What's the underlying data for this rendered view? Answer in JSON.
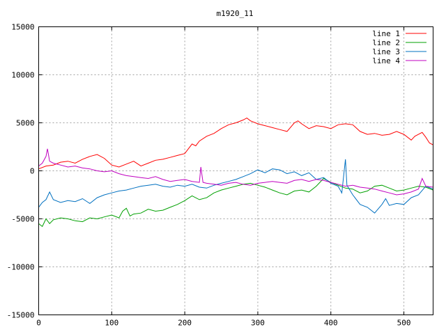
{
  "chart_data": {
    "type": "line",
    "title": "m1920_11",
    "xlabel": "",
    "ylabel": "",
    "xlim": [
      0,
      540
    ],
    "ylim": [
      -15000,
      15000
    ],
    "xticks": [
      0,
      100,
      200,
      300,
      400,
      500
    ],
    "yticks": [
      -15000,
      -10000,
      -5000,
      0,
      5000,
      10000,
      15000
    ],
    "grid": true,
    "legend_position": "top-right",
    "series": [
      {
        "name": "line 1",
        "color": "#ff0000",
        "points": [
          [
            0,
            200
          ],
          [
            10,
            500
          ],
          [
            20,
            600
          ],
          [
            30,
            900
          ],
          [
            40,
            1000
          ],
          [
            50,
            800
          ],
          [
            60,
            1200
          ],
          [
            70,
            1500
          ],
          [
            80,
            1700
          ],
          [
            90,
            1300
          ],
          [
            100,
            600
          ],
          [
            110,
            400
          ],
          [
            120,
            700
          ],
          [
            130,
            1000
          ],
          [
            140,
            500
          ],
          [
            150,
            800
          ],
          [
            160,
            1100
          ],
          [
            170,
            1200
          ],
          [
            180,
            1400
          ],
          [
            190,
            1600
          ],
          [
            200,
            1800
          ],
          [
            210,
            2800
          ],
          [
            215,
            2600
          ],
          [
            220,
            3100
          ],
          [
            230,
            3600
          ],
          [
            240,
            3900
          ],
          [
            250,
            4400
          ],
          [
            260,
            4800
          ],
          [
            270,
            5000
          ],
          [
            280,
            5300
          ],
          [
            285,
            5500
          ],
          [
            290,
            5200
          ],
          [
            300,
            4900
          ],
          [
            310,
            4700
          ],
          [
            320,
            4500
          ],
          [
            330,
            4300
          ],
          [
            340,
            4100
          ],
          [
            350,
            5000
          ],
          [
            355,
            5200
          ],
          [
            360,
            4900
          ],
          [
            370,
            4400
          ],
          [
            380,
            4700
          ],
          [
            390,
            4600
          ],
          [
            400,
            4400
          ],
          [
            410,
            4800
          ],
          [
            420,
            4900
          ],
          [
            430,
            4800
          ],
          [
            440,
            4100
          ],
          [
            450,
            3800
          ],
          [
            460,
            3900
          ],
          [
            470,
            3700
          ],
          [
            480,
            3800
          ],
          [
            490,
            4100
          ],
          [
            500,
            3800
          ],
          [
            510,
            3200
          ],
          [
            515,
            3600
          ],
          [
            520,
            3800
          ],
          [
            525,
            4000
          ],
          [
            530,
            3500
          ],
          [
            535,
            2900
          ],
          [
            540,
            2700
          ]
        ]
      },
      {
        "name": "line 2",
        "color": "#00a000",
        "points": [
          [
            0,
            -5500
          ],
          [
            5,
            -5800
          ],
          [
            10,
            -5000
          ],
          [
            15,
            -5500
          ],
          [
            20,
            -5100
          ],
          [
            30,
            -4900
          ],
          [
            40,
            -5000
          ],
          [
            50,
            -5200
          ],
          [
            60,
            -5300
          ],
          [
            70,
            -4900
          ],
          [
            80,
            -5000
          ],
          [
            90,
            -4800
          ],
          [
            100,
            -4600
          ],
          [
            110,
            -4900
          ],
          [
            115,
            -4200
          ],
          [
            120,
            -3900
          ],
          [
            125,
            -4700
          ],
          [
            130,
            -4500
          ],
          [
            140,
            -4400
          ],
          [
            150,
            -4000
          ],
          [
            160,
            -4200
          ],
          [
            170,
            -4100
          ],
          [
            180,
            -3800
          ],
          [
            190,
            -3500
          ],
          [
            200,
            -3100
          ],
          [
            210,
            -2600
          ],
          [
            220,
            -3000
          ],
          [
            230,
            -2800
          ],
          [
            240,
            -2300
          ],
          [
            250,
            -2000
          ],
          [
            260,
            -1800
          ],
          [
            270,
            -1600
          ],
          [
            280,
            -1400
          ],
          [
            290,
            -1300
          ],
          [
            300,
            -1500
          ],
          [
            310,
            -1700
          ],
          [
            320,
            -2000
          ],
          [
            330,
            -2300
          ],
          [
            340,
            -2500
          ],
          [
            350,
            -2100
          ],
          [
            360,
            -2000
          ],
          [
            370,
            -2200
          ],
          [
            380,
            -1600
          ],
          [
            390,
            -800
          ],
          [
            400,
            -1200
          ],
          [
            410,
            -1500
          ],
          [
            420,
            -1800
          ],
          [
            430,
            -1900
          ],
          [
            440,
            -2300
          ],
          [
            450,
            -2100
          ],
          [
            460,
            -1600
          ],
          [
            470,
            -1500
          ],
          [
            480,
            -1800
          ],
          [
            490,
            -2100
          ],
          [
            500,
            -2000
          ],
          [
            510,
            -1800
          ],
          [
            520,
            -1600
          ],
          [
            530,
            -1700
          ],
          [
            540,
            -2000
          ]
        ]
      },
      {
        "name": "line 3",
        "color": "#0070c0",
        "points": [
          [
            0,
            -3800
          ],
          [
            5,
            -3300
          ],
          [
            10,
            -3000
          ],
          [
            15,
            -2200
          ],
          [
            20,
            -3000
          ],
          [
            30,
            -3300
          ],
          [
            40,
            -3100
          ],
          [
            50,
            -3200
          ],
          [
            60,
            -2900
          ],
          [
            70,
            -3400
          ],
          [
            80,
            -2800
          ],
          [
            90,
            -2500
          ],
          [
            100,
            -2300
          ],
          [
            110,
            -2100
          ],
          [
            120,
            -2000
          ],
          [
            130,
            -1800
          ],
          [
            140,
            -1600
          ],
          [
            150,
            -1500
          ],
          [
            160,
            -1400
          ],
          [
            170,
            -1600
          ],
          [
            180,
            -1700
          ],
          [
            190,
            -1500
          ],
          [
            200,
            -1600
          ],
          [
            210,
            -1400
          ],
          [
            220,
            -1700
          ],
          [
            230,
            -1800
          ],
          [
            240,
            -1500
          ],
          [
            250,
            -1300
          ],
          [
            260,
            -1100
          ],
          [
            270,
            -900
          ],
          [
            280,
            -600
          ],
          [
            290,
            -300
          ],
          [
            300,
            100
          ],
          [
            310,
            -200
          ],
          [
            320,
            200
          ],
          [
            330,
            100
          ],
          [
            340,
            -300
          ],
          [
            350,
            -100
          ],
          [
            360,
            -500
          ],
          [
            370,
            -200
          ],
          [
            380,
            -900
          ],
          [
            390,
            -700
          ],
          [
            400,
            -1300
          ],
          [
            410,
            -1600
          ],
          [
            415,
            -2300
          ],
          [
            420,
            1200
          ],
          [
            422,
            -1500
          ],
          [
            430,
            -2500
          ],
          [
            440,
            -3500
          ],
          [
            450,
            -3800
          ],
          [
            460,
            -4400
          ],
          [
            470,
            -3500
          ],
          [
            475,
            -2900
          ],
          [
            480,
            -3600
          ],
          [
            490,
            -3400
          ],
          [
            500,
            -3500
          ],
          [
            510,
            -2800
          ],
          [
            520,
            -2500
          ],
          [
            530,
            -1600
          ],
          [
            540,
            -1900
          ]
        ]
      },
      {
        "name": "line 4",
        "color": "#c000c0",
        "points": [
          [
            0,
            500
          ],
          [
            5,
            800
          ],
          [
            10,
            1500
          ],
          [
            12,
            2300
          ],
          [
            15,
            1000
          ],
          [
            20,
            800
          ],
          [
            30,
            600
          ],
          [
            40,
            400
          ],
          [
            50,
            500
          ],
          [
            60,
            300
          ],
          [
            70,
            200
          ],
          [
            80,
            0
          ],
          [
            90,
            -100
          ],
          [
            100,
            0
          ],
          [
            110,
            -300
          ],
          [
            120,
            -500
          ],
          [
            130,
            -600
          ],
          [
            140,
            -700
          ],
          [
            150,
            -800
          ],
          [
            160,
            -600
          ],
          [
            170,
            -900
          ],
          [
            180,
            -1100
          ],
          [
            190,
            -1000
          ],
          [
            200,
            -900
          ],
          [
            210,
            -1100
          ],
          [
            220,
            -1200
          ],
          [
            222,
            400
          ],
          [
            225,
            -1200
          ],
          [
            230,
            -1300
          ],
          [
            240,
            -1400
          ],
          [
            250,
            -1500
          ],
          [
            260,
            -1300
          ],
          [
            270,
            -1200
          ],
          [
            280,
            -1400
          ],
          [
            290,
            -1500
          ],
          [
            300,
            -1300
          ],
          [
            310,
            -1200
          ],
          [
            320,
            -1100
          ],
          [
            330,
            -1200
          ],
          [
            340,
            -1300
          ],
          [
            350,
            -1000
          ],
          [
            360,
            -900
          ],
          [
            370,
            -1100
          ],
          [
            380,
            -900
          ],
          [
            390,
            -1000
          ],
          [
            400,
            -1200
          ],
          [
            410,
            -1400
          ],
          [
            420,
            -1600
          ],
          [
            430,
            -1500
          ],
          [
            440,
            -1700
          ],
          [
            450,
            -1800
          ],
          [
            460,
            -1900
          ],
          [
            470,
            -2100
          ],
          [
            480,
            -2300
          ],
          [
            490,
            -2500
          ],
          [
            500,
            -2400
          ],
          [
            510,
            -2200
          ],
          [
            520,
            -1900
          ],
          [
            525,
            -800
          ],
          [
            530,
            -1600
          ],
          [
            540,
            -1700
          ]
        ]
      }
    ]
  }
}
